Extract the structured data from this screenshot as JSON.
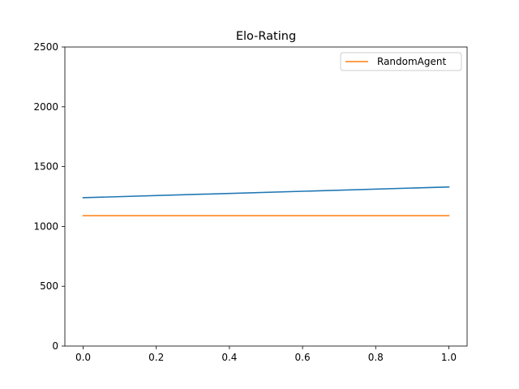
{
  "chart_data": {
    "type": "line",
    "title": "Elo-Rating",
    "xlabel": "",
    "ylabel": "",
    "xlim": [
      -0.05,
      1.05
    ],
    "ylim": [
      0,
      2500
    ],
    "xticks": [
      0.0,
      0.2,
      0.4,
      0.6,
      0.8,
      1.0
    ],
    "xtick_labels": [
      "0.0",
      "0.2",
      "0.4",
      "0.6",
      "0.8",
      "1.0"
    ],
    "yticks": [
      0,
      500,
      1000,
      1500,
      2000,
      2500
    ],
    "ytick_labels": [
      "0",
      "500",
      "1000",
      "1500",
      "2000",
      "2500"
    ],
    "grid": false,
    "legend_position": "top-right",
    "series": [
      {
        "x": [
          0.0,
          1.0
        ],
        "y": [
          1240,
          1330
        ],
        "color": "#1f77b4"
      },
      {
        "name": "RandomAgent",
        "x": [
          0.0,
          1.0
        ],
        "y": [
          1090,
          1090
        ],
        "color": "#ff7f0e"
      }
    ]
  }
}
